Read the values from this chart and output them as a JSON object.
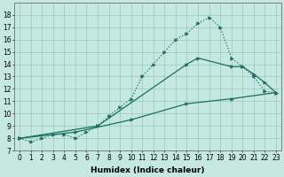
{
  "xlabel": "Humidex (Indice chaleur)",
  "bg_color": "#c5e8e0",
  "line_color": "#1a7060",
  "xlim": [
    -0.5,
    23.5
  ],
  "ylim": [
    7,
    19
  ],
  "xticks": [
    0,
    1,
    2,
    3,
    4,
    5,
    6,
    7,
    8,
    9,
    10,
    11,
    12,
    13,
    14,
    15,
    16,
    17,
    18,
    19,
    20,
    21,
    22,
    23
  ],
  "yticks": [
    7,
    8,
    9,
    10,
    11,
    12,
    13,
    14,
    15,
    16,
    17,
    18
  ],
  "line1_x": [
    0,
    1,
    2,
    3,
    4,
    5,
    6,
    7,
    8,
    9,
    10,
    11,
    12,
    13,
    14,
    15,
    16,
    17,
    18,
    19,
    20,
    21,
    22,
    23
  ],
  "line1_y": [
    8.0,
    7.7,
    8.0,
    8.3,
    8.3,
    8.0,
    8.5,
    9.0,
    9.8,
    10.5,
    11.2,
    13.0,
    14.0,
    15.0,
    16.0,
    16.5,
    17.3,
    17.8,
    17.0,
    14.5,
    13.8,
    13.0,
    11.8,
    11.7
  ],
  "line2_x": [
    0,
    7,
    15,
    16,
    19,
    20,
    21,
    22,
    23
  ],
  "line2_y": [
    8.0,
    9.0,
    14.0,
    14.5,
    13.8,
    13.8,
    13.2,
    12.5,
    11.7
  ],
  "line3_x": [
    0,
    5,
    10,
    15,
    19,
    23
  ],
  "line3_y": [
    8.0,
    8.5,
    9.5,
    10.8,
    11.2,
    11.7
  ],
  "tick_fontsize": 5.5,
  "xlabel_fontsize": 6.5
}
